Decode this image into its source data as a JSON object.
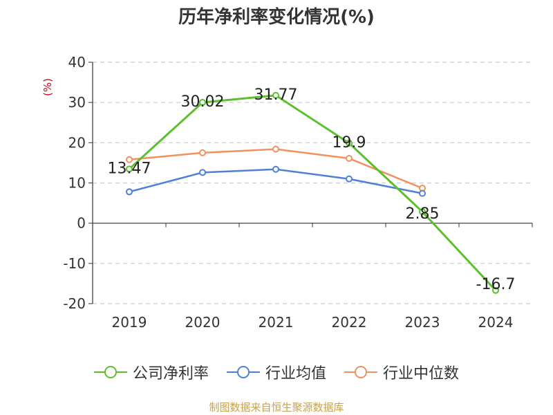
{
  "chart_data": {
    "type": "line",
    "title": "历年净利率变化情况(%)",
    "ylabel": "(%)",
    "ylim": [
      -20,
      40
    ],
    "yticks": [
      -20,
      -10,
      0,
      10,
      20,
      30,
      40
    ],
    "categories": [
      "2019",
      "2020",
      "2021",
      "2022",
      "2023",
      "2024"
    ],
    "grid": true,
    "legend_position": "bottom",
    "series": [
      {
        "name": "公司净利率",
        "color": "#5ac02c",
        "values": [
          13.47,
          30.02,
          31.77,
          19.9,
          2.85,
          -16.7
        ],
        "labels": [
          "13.47",
          "30.02",
          "31.77",
          "19.9",
          "2.85",
          "-16.7"
        ]
      },
      {
        "name": "行业均值",
        "color": "#4f7fd6",
        "values": [
          7.8,
          12.6,
          13.4,
          11.0,
          7.4,
          null
        ]
      },
      {
        "name": "行业中位数",
        "color": "#f2905e",
        "values": [
          15.8,
          17.5,
          18.4,
          16.1,
          8.7,
          null
        ]
      }
    ]
  },
  "source_text": "制图数据来自恒生聚源数据库"
}
